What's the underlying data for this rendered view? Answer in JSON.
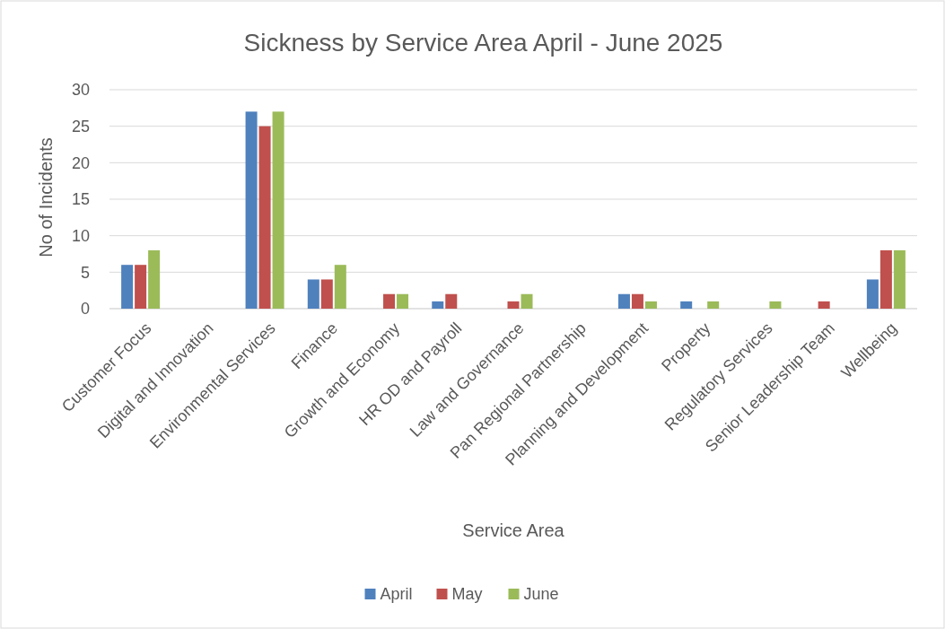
{
  "chart_data": {
    "type": "bar",
    "title": "Sickness by Service Area April - June 2025",
    "xlabel": "Service Area",
    "ylabel": "No of Incidents",
    "categories": [
      "Customer Focus",
      "Digital and Innovation",
      "Environmental Services",
      "Finance",
      "Growth and Economy",
      "HR OD and Payroll",
      "Law and Governance",
      "Pan Regional Partnership",
      "Planning and Development",
      "Property",
      "Regulatory Services",
      "Senior Leadership Team",
      "Wellbeing"
    ],
    "series": [
      {
        "name": "April",
        "color": "#4f81bd",
        "values": [
          6,
          0,
          27,
          4,
          0,
          1,
          0,
          0,
          2,
          1,
          0,
          0,
          4
        ]
      },
      {
        "name": "May",
        "color": "#c0504d",
        "values": [
          6,
          0,
          25,
          4,
          2,
          2,
          1,
          0,
          2,
          0,
          0,
          1,
          8
        ]
      },
      {
        "name": "June",
        "color": "#9bbb59",
        "values": [
          8,
          0,
          27,
          6,
          2,
          0,
          2,
          0,
          1,
          1,
          1,
          0,
          8
        ]
      }
    ],
    "ylim": [
      0,
      30
    ],
    "yticks": [
      0,
      5,
      10,
      15,
      20,
      25,
      30
    ],
    "grid": "y",
    "legend": "bottom"
  }
}
